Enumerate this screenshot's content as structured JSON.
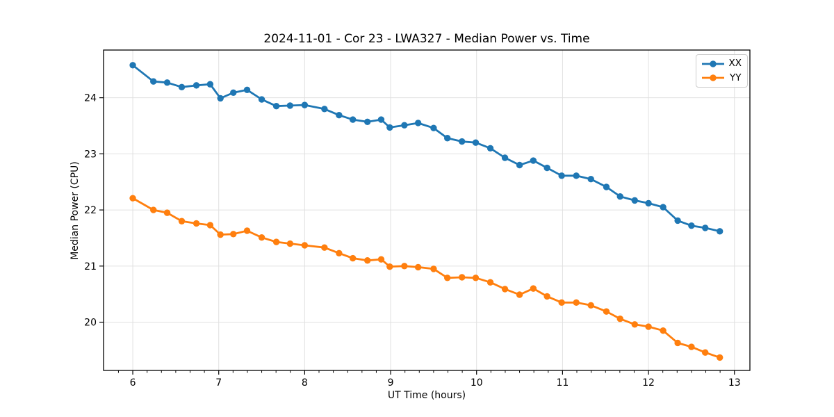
{
  "chart_data": {
    "type": "line",
    "title": "2024-11-01 - Cor 23 - LWA327 - Median Power vs. Time",
    "xlabel": "UT Time (hours)",
    "ylabel": "Median Power (CPU)",
    "xlim": [
      5.66,
      13.18
    ],
    "ylim": [
      19.14,
      24.85
    ],
    "xticks": [
      6,
      7,
      8,
      9,
      10,
      11,
      12,
      13
    ],
    "yticks": [
      20,
      21,
      22,
      23,
      24
    ],
    "x_minor_ticks_per_unit": 6,
    "grid": true,
    "grid_color": "#e0e0e0",
    "background": "#ffffff",
    "legend_position": "upper right",
    "marker": "circle",
    "x": [
      6.0,
      6.24,
      6.4,
      6.57,
      6.74,
      6.9,
      7.02,
      7.17,
      7.33,
      7.5,
      7.67,
      7.83,
      8.0,
      8.23,
      8.4,
      8.56,
      8.73,
      8.89,
      8.99,
      9.16,
      9.32,
      9.5,
      9.66,
      9.83,
      9.99,
      10.16,
      10.33,
      10.5,
      10.66,
      10.82,
      10.99,
      11.16,
      11.33,
      11.51,
      11.67,
      11.84,
      12.0,
      12.17,
      12.34,
      12.5,
      12.66,
      12.83
    ],
    "series": [
      {
        "name": "XX",
        "color": "#1f77b4",
        "values": [
          24.58,
          24.29,
          24.27,
          24.19,
          24.22,
          24.24,
          23.99,
          24.09,
          24.14,
          23.97,
          23.85,
          23.86,
          23.87,
          23.8,
          23.69,
          23.61,
          23.57,
          23.61,
          23.47,
          23.51,
          23.55,
          23.46,
          23.28,
          23.22,
          23.2,
          23.1,
          22.93,
          22.8,
          22.88,
          22.75,
          22.61,
          22.61,
          22.55,
          22.41,
          22.24,
          22.17,
          22.12,
          22.05,
          21.81,
          21.72,
          21.68,
          21.62
        ]
      },
      {
        "name": "YY",
        "color": "#ff7f0e",
        "values": [
          22.21,
          22.0,
          21.95,
          21.8,
          21.76,
          21.73,
          21.56,
          21.57,
          21.63,
          21.51,
          21.43,
          21.4,
          21.37,
          21.33,
          21.23,
          21.14,
          21.1,
          21.12,
          20.99,
          21.0,
          20.98,
          20.95,
          20.79,
          20.8,
          20.79,
          20.71,
          20.59,
          20.49,
          20.6,
          20.46,
          20.35,
          20.35,
          20.3,
          20.19,
          20.06,
          19.96,
          19.92,
          19.85,
          19.63,
          19.56,
          19.46,
          19.37
        ]
      }
    ]
  }
}
